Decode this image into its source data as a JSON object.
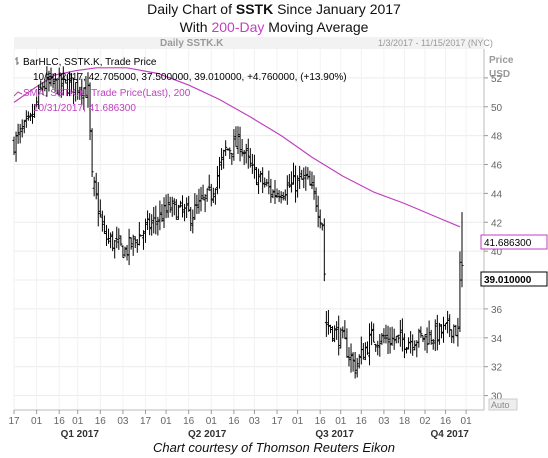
{
  "header": {
    "line1_prefix": "Daily Chart of ",
    "ticker": "SSTK",
    "line1_suffix": " Since January 2017",
    "line2_prefix": "With ",
    "sma_label": "200-Day",
    "line2_suffix": " Moving Average"
  },
  "credit": "Chart courtesy of Thomson Reuters Eikon",
  "chart_data": {
    "type": "ohlc_bar_with_line",
    "panel_title": "Daily SSTK.K",
    "date_range": "1/3/2017 - 11/15/2017 (NYC)",
    "price_axis_label": "Price",
    "price_unit": "USD",
    "auto_label": "Auto",
    "ylim": [
      29,
      54
    ],
    "yticks": [
      30,
      32,
      34,
      36,
      38,
      40,
      42,
      44,
      46,
      48,
      50,
      52
    ],
    "xlim": [
      0,
      218
    ],
    "x_day_ticks": [
      {
        "label": "17",
        "i": 0
      },
      {
        "label": "01",
        "i": 11
      },
      {
        "label": "16",
        "i": 22
      },
      {
        "label": "01",
        "i": 31
      },
      {
        "label": "16",
        "i": 42
      },
      {
        "label": "03",
        "i": 53
      },
      {
        "label": "17",
        "i": 64
      },
      {
        "label": "01",
        "i": 74
      },
      {
        "label": "16",
        "i": 85
      },
      {
        "label": "01",
        "i": 96
      },
      {
        "label": "16",
        "i": 107
      },
      {
        "label": "03",
        "i": 117
      },
      {
        "label": "17",
        "i": 128
      },
      {
        "label": "01",
        "i": 138
      },
      {
        "label": "16",
        "i": 149
      },
      {
        "label": "01",
        "i": 159
      },
      {
        "label": "16",
        "i": 169
      },
      {
        "label": "03",
        "i": 180
      },
      {
        "label": "18",
        "i": 190
      },
      {
        "label": "02",
        "i": 200
      },
      {
        "label": "16",
        "i": 210
      },
      {
        "label": "01",
        "i": 220
      }
    ],
    "x_quarter_ticks": [
      {
        "label": "Q1 2017",
        "i": 32
      },
      {
        "label": "Q2 2017",
        "i": 94
      },
      {
        "label": "Q3 2017",
        "i": 156
      },
      {
        "label": "Q4 2017",
        "i": 212
      }
    ],
    "legend": [
      {
        "name": "BarHLC, SSTK.K, Trade Price",
        "values": "10/31/2017, 42.705000, 37.500000, 39.010000, +4.760000, (+13.90%)",
        "color": "#000000"
      },
      {
        "name": "SMA, SSTK.K, Trade Price(Last), 200",
        "values": "10/31/2017, 41.686300",
        "color": "#c040c0"
      }
    ],
    "last_price_label": "39.010000",
    "sma_last_label": "41.686300",
    "ohlc_series": {
      "name": "SSTK.K",
      "color": "#000000",
      "anchors": [
        {
          "i": 0,
          "c": 47.5
        },
        {
          "i": 8,
          "c": 49.0
        },
        {
          "i": 14,
          "c": 51.5
        },
        {
          "i": 32,
          "c": 51.5
        },
        {
          "i": 36,
          "c": 51.0
        },
        {
          "i": 38,
          "c": 45.0
        },
        {
          "i": 44,
          "c": 41.0
        },
        {
          "i": 54,
          "c": 40.0
        },
        {
          "i": 64,
          "c": 41.5
        },
        {
          "i": 76,
          "c": 43.0
        },
        {
          "i": 86,
          "c": 42.5
        },
        {
          "i": 96,
          "c": 44.0
        },
        {
          "i": 103,
          "c": 47.0
        },
        {
          "i": 110,
          "c": 47.5
        },
        {
          "i": 116,
          "c": 45.5
        },
        {
          "i": 126,
          "c": 44.0
        },
        {
          "i": 134,
          "c": 44.5
        },
        {
          "i": 142,
          "c": 45.0
        },
        {
          "i": 147,
          "c": 43.5
        },
        {
          "i": 150,
          "c": 42.0
        },
        {
          "i": 152,
          "c": 35.0
        },
        {
          "i": 160,
          "c": 33.8
        },
        {
          "i": 166,
          "c": 32.0
        },
        {
          "i": 174,
          "c": 34.0
        },
        {
          "i": 190,
          "c": 33.8
        },
        {
          "i": 205,
          "c": 34.2
        },
        {
          "i": 214,
          "c": 34.8
        },
        {
          "i": 216,
          "c": 34.3
        },
        {
          "i": 217,
          "c": 39.01
        }
      ]
    },
    "sma_series": {
      "name": "SMA 200",
      "color": "#c040c0",
      "points": [
        [
          0,
          50.3
        ],
        [
          10,
          51.3
        ],
        [
          20,
          52.2
        ],
        [
          30,
          52.5
        ],
        [
          40,
          52.7
        ],
        [
          55,
          52.7
        ],
        [
          70,
          52.3
        ],
        [
          85,
          51.5
        ],
        [
          100,
          50.5
        ],
        [
          115,
          49.3
        ],
        [
          130,
          48.0
        ],
        [
          145,
          46.5
        ],
        [
          160,
          45.2
        ],
        [
          175,
          44.1
        ],
        [
          190,
          43.3
        ],
        [
          205,
          42.4
        ],
        [
          217,
          41.6863
        ]
      ]
    }
  }
}
